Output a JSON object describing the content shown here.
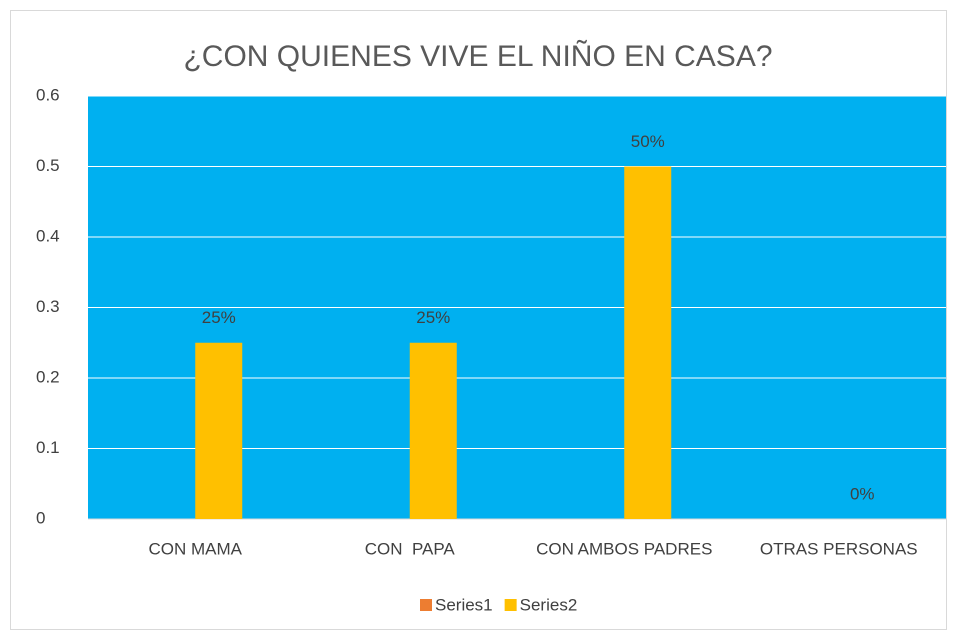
{
  "chart_data": {
    "type": "bar",
    "title": "¿CON QUIENES VIVE EL NIÑO EN CASA?",
    "categories": [
      "CON MAMA",
      "CON  PAPA",
      "CON AMBOS PADRES",
      "OTRAS PERSONAS"
    ],
    "series": [
      {
        "name": "Series1",
        "color": "#ed7d31",
        "values": [
          0,
          0,
          0,
          0
        ]
      },
      {
        "name": "Series2",
        "color": "#ffc000",
        "values": [
          0.25,
          0.25,
          0.5,
          0
        ],
        "value_labels": [
          "25%",
          "25%",
          "50%",
          "0%"
        ]
      }
    ],
    "ylim": [
      0,
      0.6
    ],
    "yticks": [
      0,
      0.1,
      0.2,
      0.3,
      0.4,
      0.5,
      0.6
    ],
    "grid": true,
    "legend": "bottom",
    "plot_background": "#00b0f0"
  }
}
